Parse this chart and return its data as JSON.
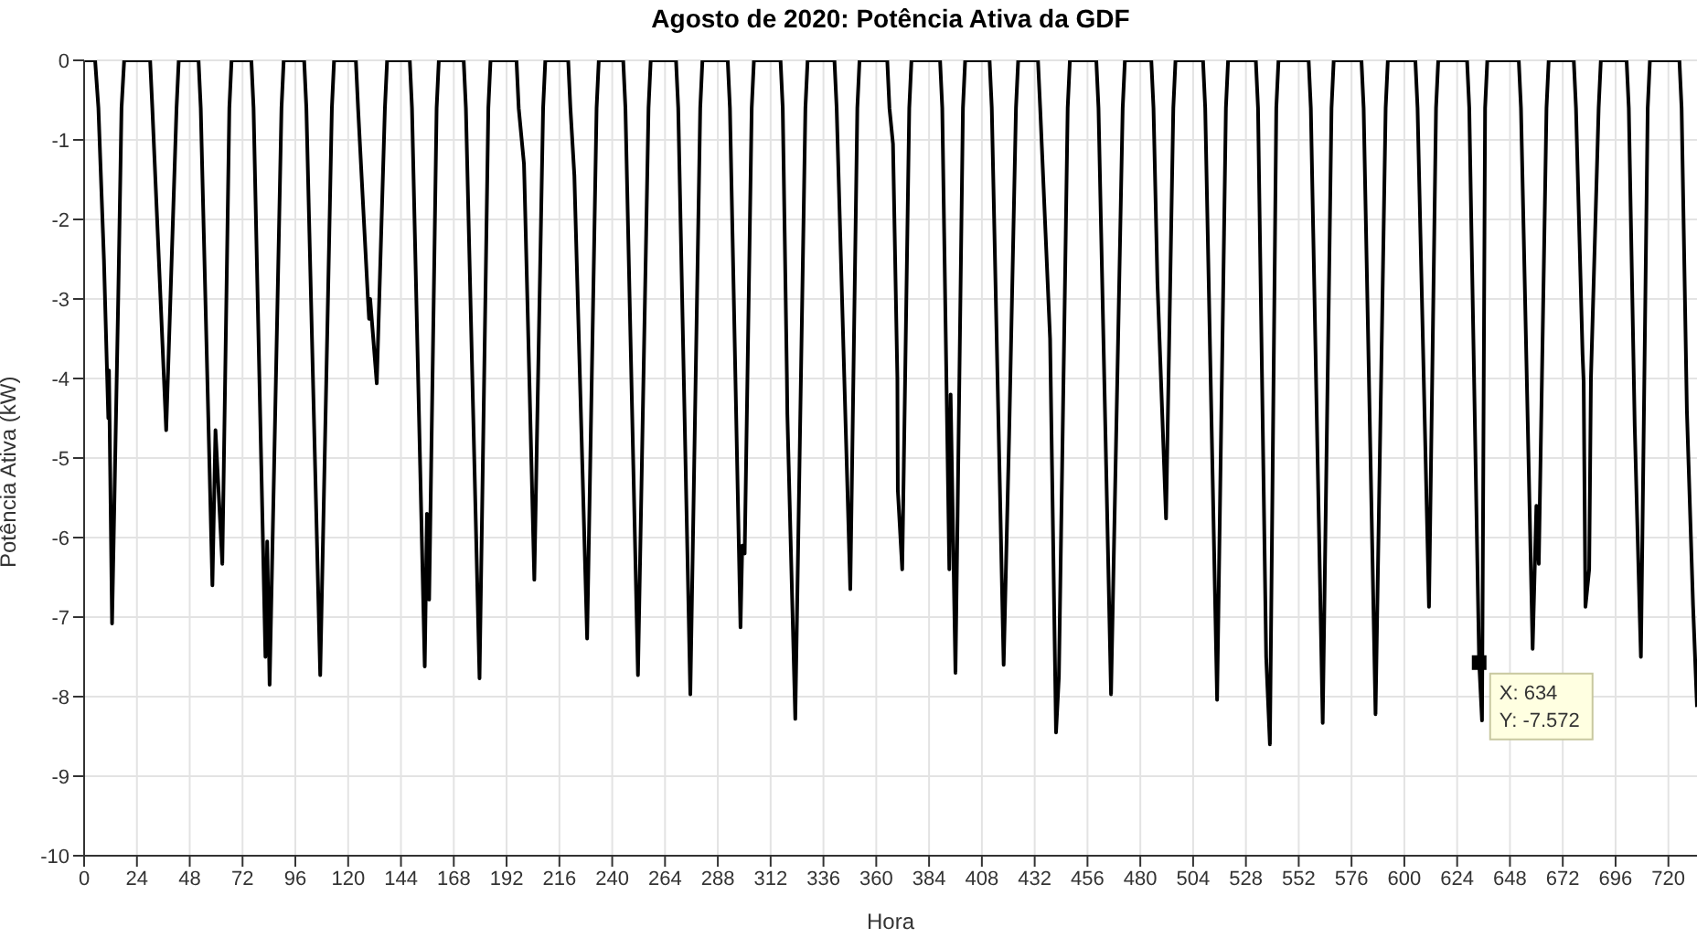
{
  "chart_data": {
    "type": "line",
    "title": "Agosto de 2020: Potência Ativa da GDF",
    "xlabel": "Hora",
    "ylabel": "Potência Ativa (kW)",
    "xlim": [
      0,
      733
    ],
    "xticks": [
      0,
      24,
      48,
      72,
      96,
      120,
      144,
      168,
      192,
      216,
      240,
      264,
      288,
      312,
      336,
      360,
      384,
      408,
      432,
      456,
      480,
      504,
      528,
      552,
      576,
      600,
      624,
      648,
      672,
      696,
      720
    ],
    "ylim": [
      -10,
      0
    ],
    "yticks": [
      -10,
      -9,
      -8,
      -7,
      -6,
      -5,
      -4,
      -3,
      -2,
      -1,
      0
    ],
    "grid": true,
    "legend": false,
    "marker": "none",
    "line_style": "solid",
    "annotations": [
      {
        "text": "X: 634\nY: -7.572",
        "x": 634,
        "y": -7.572
      }
    ],
    "series": [
      {
        "color": "#000000",
        "x": [
          0,
          5,
          6.5,
          9,
          11,
          11.3,
          12.7,
          15.5,
          17,
          18.2,
          30,
          31,
          37.3,
          42,
          43,
          52,
          53,
          58.3,
          59.7,
          62.8,
          66,
          67,
          76,
          77,
          82.4,
          83.2,
          84.3,
          89.7,
          90.7,
          100,
          101,
          107.3,
          112.6,
          113.6,
          123.5,
          124.5,
          129,
          129.5,
          130,
          133,
          136.7,
          137.7,
          148,
          149,
          154.8,
          155.8,
          156.8,
          160.2,
          161.2,
          172.5,
          173.5,
          179.7,
          183.7,
          184.7,
          196.5,
          197.5,
          199.9,
          200.1,
          204.6,
          208.6,
          209.6,
          220,
          221,
          222.8,
          228.6,
          232.9,
          233.9,
          245,
          246,
          251.7,
          256.5,
          257.5,
          269,
          270,
          275.5,
          280,
          281,
          292.5,
          293.5,
          298.3,
          299.1,
          300.2,
          303.4,
          304.4,
          316.5,
          317.5,
          319.4,
          319.6,
          323.2,
          327.8,
          328.8,
          341,
          342,
          348.2,
          351.4,
          352.4,
          365,
          366,
          367.6,
          369.6,
          369.8,
          371.8,
          375,
          376,
          389,
          390,
          393.2,
          393.8,
          396,
          399.4,
          400.4,
          411.5,
          412.5,
          417.9,
          420.4,
          423.5,
          424.5,
          433.5,
          434.5,
          439,
          441.7,
          443,
          447,
          448,
          460,
          461,
          466.7,
          472,
          473,
          485,
          486,
          487.8,
          491.7,
          495,
          496,
          508.5,
          509.5,
          514.9,
          518.9,
          519.9,
          532.5,
          533.5,
          537.2,
          538.9,
          541.8,
          542.8,
          556.5,
          557.5,
          562.9,
          566.9,
          567.9,
          580.5,
          581.5,
          586.9,
          591.5,
          592.5,
          605,
          606,
          611.2,
          614.4,
          615.4,
          628.5,
          629.5,
          634,
          635.3,
          636.7,
          637.7,
          652,
          653,
          658.3,
          660,
          661.1,
          664.6,
          665.6,
          677,
          678,
          681,
          681.5,
          682.3,
          684,
          684.8,
          688.3,
          689.3,
          701,
          702,
          704.7,
          707,
          707.5,
          710.6,
          711.6,
          725,
          726,
          728.4,
          731.2,
          733
        ],
        "values": [
          0,
          0,
          -0.6,
          -2.5,
          -4.5,
          -3.9,
          -7.08,
          -3,
          -0.6,
          0,
          0,
          -0.6,
          -4.65,
          -0.6,
          0,
          0,
          -0.6,
          -6.6,
          -4.65,
          -6.33,
          -0.6,
          0,
          0,
          -0.6,
          -7.5,
          -6.05,
          -7.85,
          -0.6,
          0,
          0,
          -0.6,
          -7.73,
          -0.6,
          0,
          0,
          -0.6,
          -3.0,
          -3.25,
          -3.0,
          -4.06,
          -0.6,
          0,
          0,
          -0.6,
          -7.62,
          -5.7,
          -6.78,
          -0.6,
          0,
          0,
          -0.6,
          -7.77,
          -0.6,
          0,
          0,
          -0.6,
          -1.3,
          -1.5,
          -6.53,
          -0.6,
          0,
          0,
          -0.6,
          -1.45,
          -7.27,
          -0.6,
          0,
          0,
          -0.6,
          -7.73,
          -0.6,
          0,
          0,
          -0.6,
          -7.97,
          -0.6,
          0,
          0,
          -0.6,
          -7.13,
          -6.1,
          -6.2,
          -0.6,
          0,
          0,
          -0.6,
          -4.0,
          -4.45,
          -8.28,
          -0.6,
          0,
          0,
          -0.6,
          -6.65,
          -0.6,
          0,
          0,
          -0.6,
          -1.05,
          -4.0,
          -5.4,
          -6.4,
          -0.6,
          0,
          0,
          -0.6,
          -6.4,
          -4.2,
          -7.7,
          -0.6,
          0,
          0,
          -0.6,
          -7.6,
          -4.7,
          -0.6,
          0,
          0,
          -0.6,
          -3.5,
          -8.45,
          -7.75,
          -0.6,
          0,
          0,
          -0.6,
          -7.97,
          -0.6,
          0,
          0,
          -0.6,
          -2.8,
          -5.76,
          -0.6,
          0,
          0,
          -0.6,
          -8.04,
          -0.6,
          0,
          0,
          -0.6,
          -7.5,
          -8.6,
          -0.6,
          0,
          0,
          -0.6,
          -8.33,
          -0.6,
          0,
          0,
          -0.6,
          -8.22,
          -0.6,
          0,
          0,
          -0.6,
          -6.87,
          -0.6,
          0,
          0,
          -0.6,
          -7.572,
          -8.3,
          -0.6,
          0,
          0,
          -0.6,
          -7.4,
          -5.6,
          -6.33,
          -0.6,
          0,
          0,
          -0.6,
          -3.7,
          -4.05,
          -6.87,
          -6.4,
          -4.0,
          -0.6,
          0,
          0,
          -0.6,
          -4.6,
          -7.0,
          -7.5,
          -0.6,
          0,
          0,
          -0.6,
          -4.4,
          -6.85,
          -8.13
        ]
      }
    ]
  }
}
